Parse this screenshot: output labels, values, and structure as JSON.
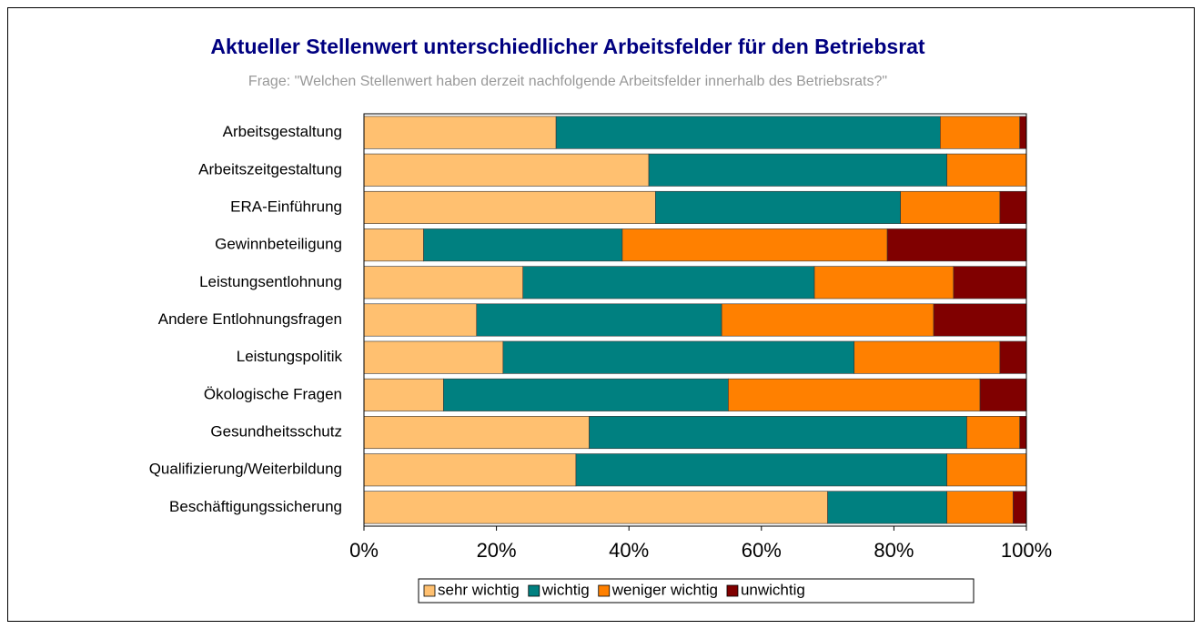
{
  "chart_data": {
    "type": "stacked_barh",
    "title": "Aktueller Stellenwert unterschiedlicher Arbeitsfelder für den Betriebsrat",
    "subtitle": "Frage: \"Welchen Stellenwert haben derzeit nachfolgende Arbeitsfelder innerhalb des Betriebsrats?\"",
    "categories": [
      "Arbeitsgestaltung",
      "Arbeitszeitgestaltung",
      "ERA-Einführung",
      "Gewinnbeteiligung",
      "Leistungsentlohnung",
      "Andere Entlohnungsfragen",
      "Leistungspolitik",
      "Ökologische Fragen",
      "Gesundheitsschutz",
      "Qualifizierung/Weiterbildung",
      "Beschäftigungssicherung"
    ],
    "series": [
      {
        "name": "sehr wichtig",
        "color": "#ffc070",
        "values": [
          29,
          43,
          44,
          9,
          24,
          17,
          21,
          12,
          34,
          32,
          70
        ]
      },
      {
        "name": "wichtig",
        "color": "#008080",
        "values": [
          58,
          45,
          37,
          30,
          44,
          37,
          53,
          43,
          57,
          56,
          18
        ]
      },
      {
        "name": "weniger wichtig",
        "color": "#ff8000",
        "values": [
          12,
          12,
          15,
          40,
          21,
          32,
          22,
          38,
          8,
          12,
          10
        ]
      },
      {
        "name": "unwichtig",
        "color": "#800000",
        "values": [
          1,
          0,
          4,
          21,
          11,
          14,
          4,
          7,
          1,
          0,
          2
        ]
      }
    ],
    "xlim": [
      0,
      100
    ],
    "xticks": [
      {
        "value": 0,
        "label": "0%"
      },
      {
        "value": 20,
        "label": "20%"
      },
      {
        "value": 40,
        "label": "40%"
      },
      {
        "value": 60,
        "label": "60%"
      },
      {
        "value": 80,
        "label": "80%"
      },
      {
        "value": 100,
        "label": "100%"
      }
    ],
    "legend": "bottom"
  }
}
